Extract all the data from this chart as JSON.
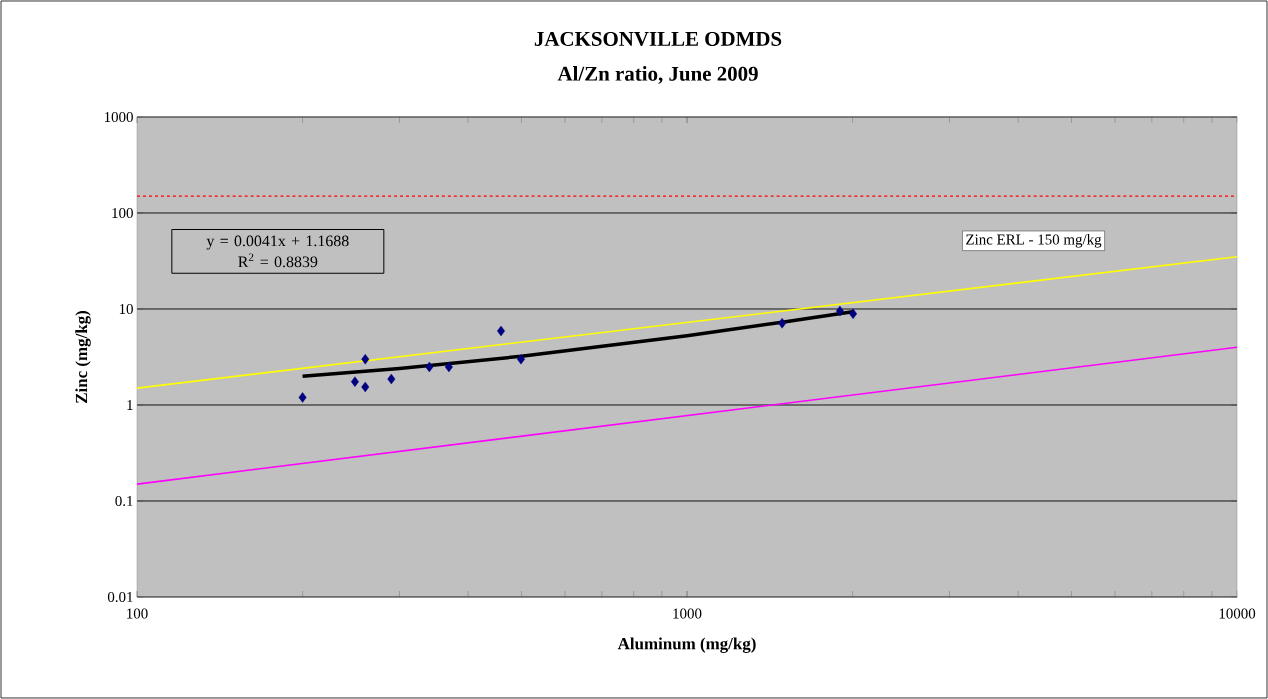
{
  "chart_data": {
    "type": "scatter",
    "title": "JACKSONVILLE ODMDS",
    "subtitle": "Al/Zn ratio, June 2009",
    "xlabel": "Aluminum (mg/kg)",
    "ylabel": "Zinc (mg/kg)",
    "series": [
      {
        "color": "#000080",
        "marker": "diamond",
        "x": [
          200,
          249,
          260,
          260,
          290,
          340,
          369,
          459,
          499,
          1489,
          1897,
          2004
        ],
        "values": [
          1.2,
          1.75,
          1.54,
          3.0,
          1.86,
          2.49,
          2.49,
          5.9,
          3.0,
          7.1,
          9.5,
          8.9
        ]
      },
      {
        "type": "line",
        "color": "#000000",
        "marker": "none",
        "x": [
          200,
          300,
          500,
          1000,
          1500,
          2000
        ],
        "values": [
          1.99,
          2.4,
          3.22,
          5.27,
          7.32,
          9.37
        ]
      },
      {
        "type": "line",
        "color": "#ffff00",
        "marker": "none",
        "x": [
          100,
          10000
        ],
        "values": [
          1.5,
          35
        ]
      },
      {
        "type": "line",
        "color": "#ff00ff",
        "marker": "none",
        "x": [
          100,
          10000
        ],
        "values": [
          0.15,
          4
        ]
      }
    ],
    "log": "xy",
    "xlim": [
      100,
      10000
    ],
    "xticks": [
      100,
      1000,
      10000
    ],
    "ylim": [
      0.01,
      1000
    ],
    "yticks": [
      0.01,
      0.1,
      1,
      10,
      100,
      1000
    ],
    "grid": "y",
    "ref_lines": [
      {
        "axis": "y",
        "value": 150,
        "label": "Zinc ERL - 150 mg/kg",
        "color": "#ff0000",
        "line_style": "dashed"
      }
    ],
    "annotations": [
      "y = 0.0041x + 1.1688",
      "R$^{2}$ = 0.8839"
    ]
  }
}
